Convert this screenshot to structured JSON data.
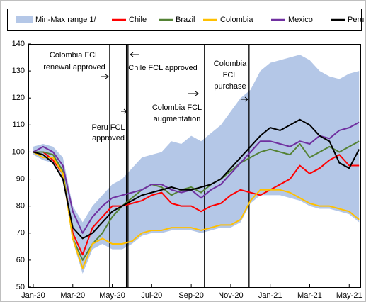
{
  "chart_data": {
    "type": "line",
    "x": [
      0,
      0.5,
      1,
      1.5,
      2,
      2.5,
      3,
      3.5,
      4,
      4.5,
      5,
      5.5,
      6,
      6.5,
      7,
      7.5,
      8,
      8.5,
      9,
      9.5,
      10,
      10.5,
      11,
      11.5,
      12,
      12.5,
      13,
      13.5,
      14,
      14.5,
      15,
      15.5,
      16,
      16.5
    ],
    "xlim": [
      -0.25,
      16.6
    ],
    "xticks": [
      {
        "value": 0,
        "label": "Jan-20"
      },
      {
        "value": 2,
        "label": "Mar-20"
      },
      {
        "value": 4,
        "label": "May-20"
      },
      {
        "value": 6,
        "label": "Jul-20"
      },
      {
        "value": 8,
        "label": "Sep-20"
      },
      {
        "value": 10,
        "label": "Nov-20"
      },
      {
        "value": 12,
        "label": "Jan-21"
      },
      {
        "value": 14,
        "label": "Mar-21"
      },
      {
        "value": 16,
        "label": "May-21"
      }
    ],
    "ylim": [
      50,
      140
    ],
    "yticks": [
      50,
      60,
      70,
      80,
      90,
      100,
      110,
      120,
      130,
      140
    ],
    "band": {
      "name": "Min-Max range 1/",
      "color": "#b4c7e7",
      "upper": [
        102,
        103,
        102,
        98,
        80,
        74,
        80,
        84,
        88,
        90,
        94,
        98,
        99,
        100,
        104,
        103,
        106,
        104,
        107,
        110,
        115,
        120,
        123,
        130,
        133,
        134,
        135,
        136,
        134,
        130,
        128,
        127,
        129,
        130
      ],
      "lower": [
        99,
        97,
        96,
        90,
        67,
        55,
        64,
        66,
        64,
        64,
        66,
        69,
        70,
        70,
        71,
        71,
        71,
        70,
        71,
        72,
        72,
        74,
        81,
        84,
        84,
        84,
        83,
        82,
        80,
        79,
        79,
        78,
        77,
        74
      ]
    },
    "series": [
      {
        "name": "Chile",
        "color": "#ff0000",
        "values": [
          100,
          100,
          97,
          92,
          70,
          62,
          72,
          76,
          80,
          80,
          81,
          82,
          84,
          85,
          81,
          80,
          80,
          78,
          80,
          81,
          84,
          86,
          85,
          84,
          86,
          88,
          90,
          95,
          92,
          94,
          97,
          99,
          95,
          95
        ]
      },
      {
        "name": "Brazil",
        "color": "#548235",
        "values": [
          100,
          100,
          99,
          93,
          68,
          60,
          66,
          70,
          76,
          80,
          83,
          86,
          88,
          87,
          84,
          86,
          87,
          85,
          88,
          90,
          93,
          96,
          98,
          100,
          101,
          100,
          99,
          103,
          98,
          100,
          102,
          100,
          102,
          104
        ]
      },
      {
        "name": "Colombia",
        "color": "#ffc000",
        "values": [
          100,
          98,
          98,
          92,
          68,
          57,
          66,
          68,
          66,
          66,
          67,
          70,
          71,
          71,
          72,
          72,
          72,
          71,
          72,
          73,
          73,
          75,
          82,
          86,
          86,
          86,
          85,
          83,
          81,
          80,
          80,
          79,
          78,
          75
        ]
      },
      {
        "name": "Mexico",
        "color": "#7030a0",
        "values": [
          100,
          102,
          100,
          95,
          78,
          70,
          76,
          80,
          83,
          84,
          85,
          86,
          88,
          88,
          86,
          85,
          86,
          83,
          86,
          88,
          92,
          96,
          100,
          104,
          104,
          103,
          102,
          104,
          103,
          106,
          105,
          108,
          109,
          111
        ]
      },
      {
        "name": "Peru",
        "color": "#000000",
        "values": [
          100,
          99,
          96,
          90,
          72,
          68,
          70,
          74,
          78,
          80,
          82,
          84,
          85,
          86,
          87,
          86,
          86,
          87,
          88,
          90,
          94,
          98,
          102,
          106,
          109,
          108,
          110,
          112,
          110,
          106,
          104,
          96,
          94,
          101
        ]
      }
    ],
    "events": [
      {
        "x": 3.87,
        "lines": [
          "Colombia FCL",
          "renewal approved"
        ]
      },
      {
        "x": 4.72,
        "lines": [
          "Peru FCL",
          "approved"
        ]
      },
      {
        "x": 4.8,
        "lines": [
          "Chile FCL approved"
        ]
      },
      {
        "x": 8.67,
        "lines": [
          "Colombia FCL",
          "augmentation"
        ]
      },
      {
        "x": 10.93,
        "lines": [
          "Colombia",
          "FCL",
          "purchase"
        ]
      }
    ]
  }
}
